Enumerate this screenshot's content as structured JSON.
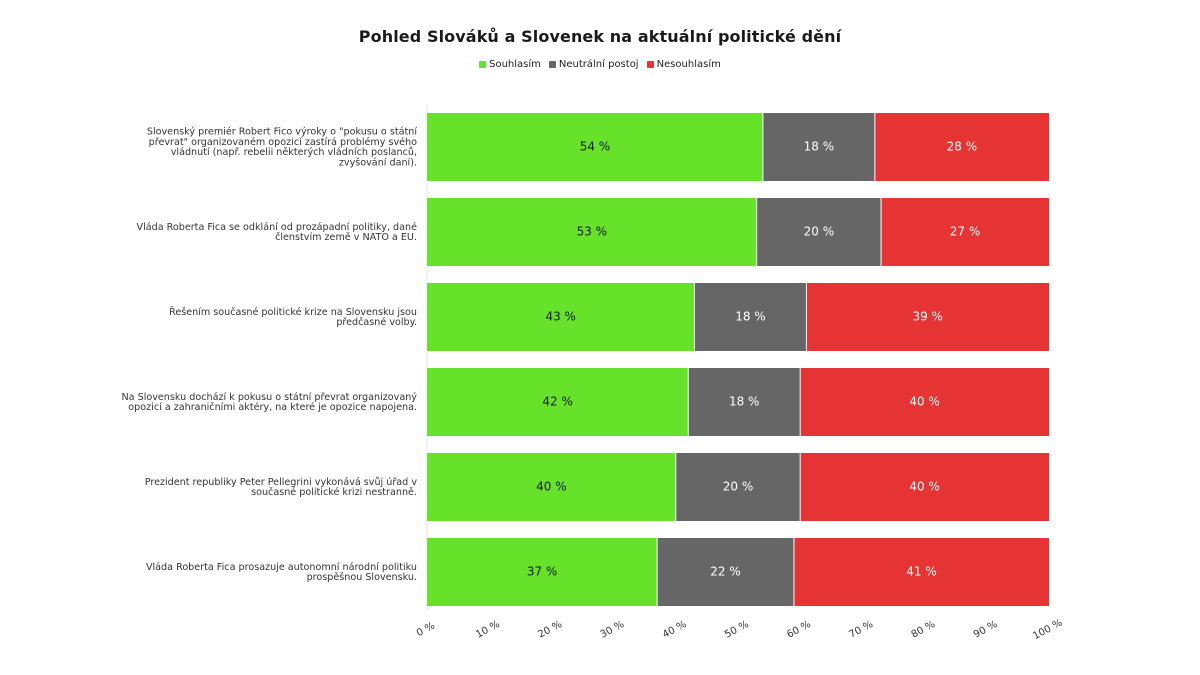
{
  "chart_data": {
    "type": "bar",
    "orientation": "horizontal",
    "stacked": true,
    "title": "Pohled Slováků a Slovenek na aktuální politické dění",
    "legend_position": "top-center",
    "categories": [
      "Slovenský premiér Robert Fico výroky o \"pokusu o státní převrat\" organizovaném opozicí zastírá problémy svého vládnutí (např. rebelii některých vládních poslanců, zvyšování daní).",
      "Vláda Roberta Fica se odklání od prozápadní politiky, dané členstvím země v NATO a EU.",
      "Řešením současné politické krize na Slovensku jsou předčasné volby.",
      "Na Slovensku dochází k pokusu o státní převrat organizovaný opozicí a zahraničními aktéry, na které je opozice napojena.",
      "Prezident republiky Peter Pellegrini vykonává svůj úřad v současné politické krizi nestranně.",
      "Vláda Roberta Fica prosazuje autonomní národní politiku prospěšnou Slovensku."
    ],
    "category_lines": [
      [
        "Slovenský premiér Robert Fico výroky o \"pokusu o státní",
        "převrat\" organizovaném opozicí zastírá problémy svého",
        "vládnutí (např. rebelii některých vládních poslanců,",
        "zvyšování daní)."
      ],
      [
        "Vláda Roberta Fica se odklání od prozápadní politiky, dané",
        "členstvím země v NATO a EU."
      ],
      [
        "Řešením současné politické krize na Slovensku jsou",
        "předčasné volby."
      ],
      [
        "Na Slovensku dochází k pokusu o státní převrat organizovaný",
        "opozicí a zahraničními aktéry, na které je opozice napojena."
      ],
      [
        "Prezident republiky Peter Pellegrini vykonává svůj úřad v",
        "současné politické krizi nestranně."
      ],
      [
        "Vláda Roberta Fica prosazuje autonomní národní politiku",
        "prospěšnou Slovensku."
      ]
    ],
    "series": [
      {
        "name": "Souhlasím",
        "color": "#66e22a",
        "label_color": "#1a1a1a",
        "values": [
          54,
          53,
          43,
          42,
          40,
          37
        ]
      },
      {
        "name": "Neutrální postoj",
        "color": "#666666",
        "label_color": "#ffffff",
        "values": [
          18,
          20,
          18,
          18,
          20,
          22
        ]
      },
      {
        "name": "Nesouhlasím",
        "color": "#e63333",
        "label_color": "#ffffff",
        "values": [
          28,
          27,
          39,
          40,
          40,
          41
        ]
      }
    ],
    "value_suffix": " %",
    "xlim": [
      0,
      100
    ],
    "x_ticks": [
      0,
      10,
      20,
      30,
      40,
      50,
      60,
      70,
      80,
      90,
      100
    ],
    "x_tick_labels": [
      "0 %",
      "10 %",
      "20 %",
      "30 %",
      "40 %",
      "50 %",
      "60 %",
      "70 %",
      "80 %",
      "90 %",
      "100 %"
    ],
    "grid": false
  }
}
